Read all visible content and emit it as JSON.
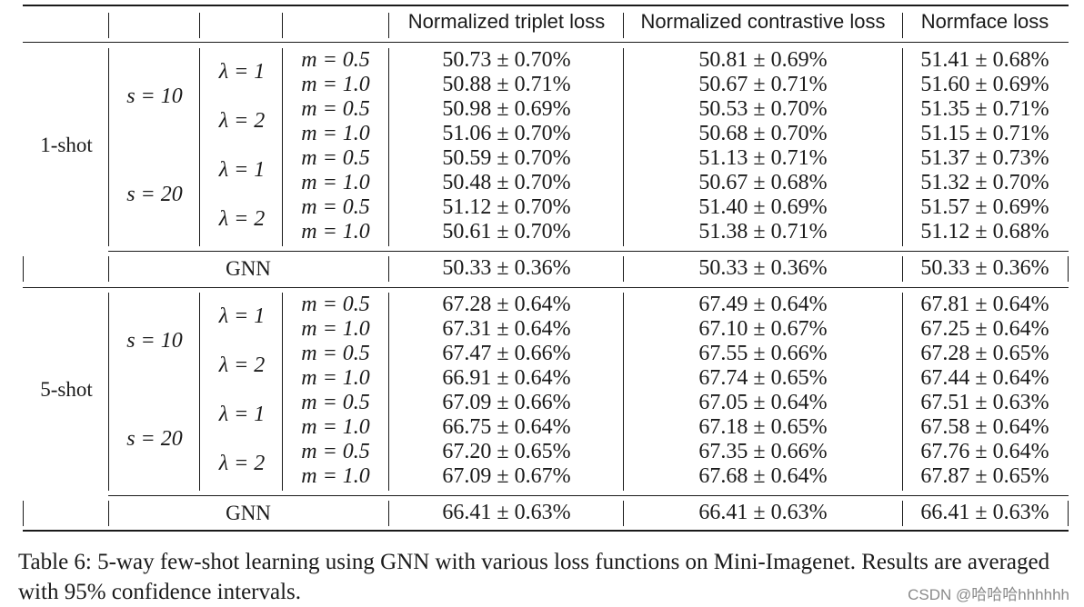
{
  "headers": [
    "Normalized triplet loss",
    "Normalized contrastive loss",
    "Normface loss"
  ],
  "shots": [
    "1-shot",
    "5-shot"
  ],
  "s_labels": [
    "s = 10",
    "s = 20"
  ],
  "lambda_labels": [
    "λ = 1",
    "λ = 2"
  ],
  "m_labels": [
    "m = 0.5",
    "m = 1.0"
  ],
  "gnn_label": "GNN",
  "rows": [
    [
      "50.73 ± 0.70%",
      "50.81 ± 0.69%",
      "51.41 ± 0.68%"
    ],
    [
      "50.88 ± 0.71%",
      "50.67 ± 0.71%",
      "51.60 ± 0.69%"
    ],
    [
      "50.98 ± 0.69%",
      "50.53 ± 0.70%",
      "51.35 ± 0.71%"
    ],
    [
      "51.06 ± 0.70%",
      "50.68 ± 0.70%",
      "51.15 ± 0.71%"
    ],
    [
      "50.59 ± 0.70%",
      "51.13 ± 0.71%",
      "51.37 ± 0.73%"
    ],
    [
      "50.48 ± 0.70%",
      "50.67 ± 0.68%",
      "51.32 ± 0.70%"
    ],
    [
      "51.12 ± 0.70%",
      "51.40 ± 0.69%",
      "51.57 ± 0.69%"
    ],
    [
      "50.61 ± 0.70%",
      "51.38 ± 0.71%",
      "51.12 ± 0.68%"
    ],
    [
      "67.28 ± 0.64%",
      "67.49 ± 0.64%",
      "67.81 ± 0.64%"
    ],
    [
      "67.31 ± 0.64%",
      "67.10 ± 0.67%",
      "67.25 ± 0.64%"
    ],
    [
      "67.47 ± 0.66%",
      "67.55 ± 0.66%",
      "67.28 ± 0.65%"
    ],
    [
      "66.91 ± 0.64%",
      "67.74 ± 0.65%",
      "67.44 ± 0.64%"
    ],
    [
      "67.09 ± 0.66%",
      "67.05 ± 0.64%",
      "67.51 ± 0.63%"
    ],
    [
      "66.75 ± 0.64%",
      "67.18 ± 0.65%",
      "67.58 ± 0.64%"
    ],
    [
      "67.20 ± 0.65%",
      "67.35 ± 0.66%",
      "67.76 ± 0.64%"
    ],
    [
      "67.09 ± 0.67%",
      "67.68 ± 0.64%",
      "67.87 ± 0.65%"
    ]
  ],
  "gnn_rows": [
    [
      "50.33 ± 0.36%",
      "50.33 ± 0.36%",
      "50.33 ± 0.36%"
    ],
    [
      "66.41 ± 0.63%",
      "66.41 ± 0.63%",
      "66.41 ± 0.63%"
    ]
  ],
  "caption": "Table 6: 5-way few-shot learning using GNN with various loss functions on Mini-Imagenet. Results are averaged with 95% confidence intervals.",
  "watermark": "CSDN @哈哈哈hhhhhh"
}
